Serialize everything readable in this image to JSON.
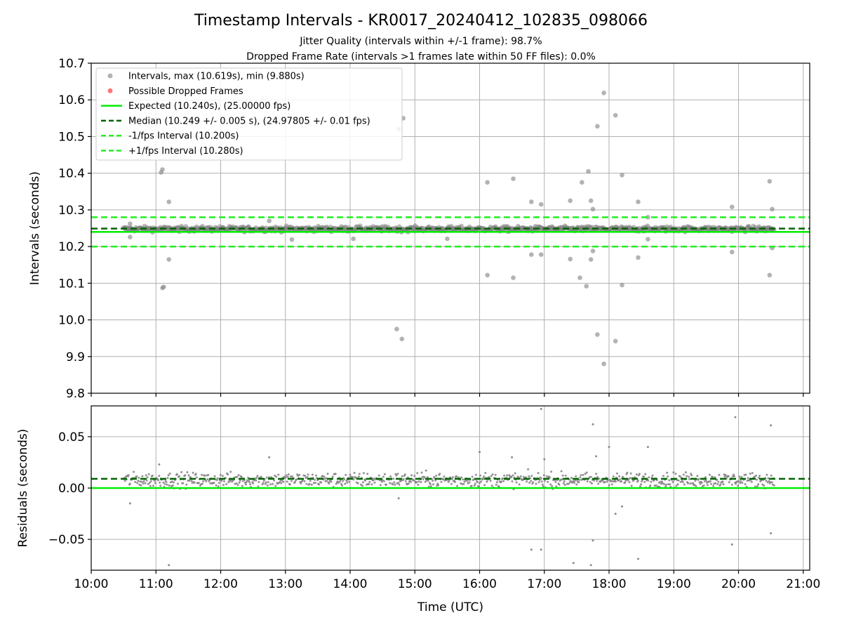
{
  "figure": {
    "title": "Timestamp Intervals - KR0017_20240412_102835_098066",
    "subtitle1": "Jitter Quality (intervals within +/-1 frame): 98.7%",
    "subtitle2": "Dropped Frame Rate (intervals >1 frames late within 50 FF files): 0.0%"
  },
  "colors": {
    "points": "#808080",
    "dropped": "#ff5555",
    "expected": "#00ee00",
    "median": "#006400",
    "fps_band": "#22ee22",
    "grid": "#b0b0b0"
  },
  "chart_data": [
    {
      "type": "scatter",
      "panel": "intervals",
      "ylabel": "Intervals (seconds)",
      "xlabel": "",
      "xlim_hours": [
        10.0,
        21.1
      ],
      "ylim": [
        9.8,
        10.7
      ],
      "x_ticks": [
        "10:00",
        "11:00",
        "12:00",
        "13:00",
        "14:00",
        "15:00",
        "16:00",
        "17:00",
        "18:00",
        "19:00",
        "20:00",
        "21:00"
      ],
      "y_ticks": [
        "9.8",
        "9.9",
        "10.0",
        "10.1",
        "10.2",
        "10.3",
        "10.4",
        "10.5",
        "10.6",
        "10.7"
      ],
      "grid": true,
      "legend_position": "top-left",
      "legend": [
        {
          "label": "Intervals, max (10.619s), min (9.880s)",
          "kind": "dot"
        },
        {
          "label": "Possible Dropped Frames",
          "kind": "dot-red"
        },
        {
          "label": "Expected (10.240s), (25.00000 fps)",
          "kind": "solid"
        },
        {
          "label": "Median (10.249 +/- 0.005 s), (24.97805 +/- 0.01 fps)",
          "kind": "dash-dark"
        },
        {
          "label": "-1/fps Interval (10.200s)",
          "kind": "dash"
        },
        {
          "label": "+1/fps Interval (10.280s)",
          "kind": "dash"
        }
      ],
      "reference_lines": {
        "expected": 10.24,
        "median": 10.249,
        "minus_fps": 10.2,
        "plus_fps": 10.28
      },
      "baseline": {
        "x_range_hours": [
          10.5,
          20.55
        ],
        "y_center": 10.248,
        "y_spread": 0.012
      },
      "outliers": [
        [
          11.1,
          10.41
        ],
        [
          11.08,
          10.402
        ],
        [
          11.2,
          10.322
        ],
        [
          11.2,
          10.165
        ],
        [
          11.12,
          10.09
        ],
        [
          11.1,
          10.087
        ],
        [
          14.75,
          10.52
        ],
        [
          14.82,
          10.55
        ],
        [
          14.72,
          9.975
        ],
        [
          14.8,
          9.948
        ],
        [
          16.12,
          10.375
        ],
        [
          16.12,
          10.122
        ],
        [
          16.52,
          10.385
        ],
        [
          16.52,
          10.115
        ],
        [
          16.8,
          10.322
        ],
        [
          16.95,
          10.315
        ],
        [
          16.8,
          10.178
        ],
        [
          16.95,
          10.178
        ],
        [
          17.4,
          10.325
        ],
        [
          17.58,
          10.375
        ],
        [
          17.68,
          10.405
        ],
        [
          17.72,
          10.325
        ],
        [
          17.75,
          10.302
        ],
        [
          17.4,
          10.166
        ],
        [
          17.55,
          10.115
        ],
        [
          17.65,
          10.092
        ],
        [
          17.72,
          10.165
        ],
        [
          17.75,
          10.188
        ],
        [
          17.82,
          10.528
        ],
        [
          17.82,
          9.96
        ],
        [
          17.92,
          10.619
        ],
        [
          17.92,
          9.88
        ],
        [
          18.1,
          10.558
        ],
        [
          18.1,
          9.942
        ],
        [
          18.2,
          10.395
        ],
        [
          18.2,
          10.095
        ],
        [
          18.45,
          10.322
        ],
        [
          18.45,
          10.17
        ],
        [
          18.6,
          10.28
        ],
        [
          18.6,
          10.22
        ],
        [
          19.9,
          10.308
        ],
        [
          19.9,
          10.185
        ],
        [
          20.48,
          10.378
        ],
        [
          20.48,
          10.122
        ],
        [
          20.52,
          10.302
        ],
        [
          20.52,
          10.196
        ],
        [
          10.6,
          10.262
        ],
        [
          10.6,
          10.226
        ],
        [
          12.75,
          10.27
        ],
        [
          13.1,
          10.219
        ],
        [
          14.05,
          10.221
        ],
        [
          15.5,
          10.221
        ]
      ]
    },
    {
      "type": "scatter",
      "panel": "residuals",
      "ylabel": "Residuals (seconds)",
      "xlabel": "Time (UTC)",
      "xlim_hours": [
        10.0,
        21.1
      ],
      "ylim": [
        -0.08,
        0.08
      ],
      "x_ticks": [
        "10:00",
        "11:00",
        "12:00",
        "13:00",
        "14:00",
        "15:00",
        "16:00",
        "17:00",
        "18:00",
        "19:00",
        "20:00",
        "21:00"
      ],
      "y_ticks": [
        "−0.05",
        "0.00",
        "0.05"
      ],
      "y_tick_values": [
        -0.05,
        0.0,
        0.05
      ],
      "grid": true,
      "reference_lines": {
        "expected": 0.0,
        "median": 0.009
      },
      "baseline": {
        "x_range_hours": [
          10.5,
          20.55
        ],
        "y_center": 0.008,
        "y_spread": 0.012
      },
      "outliers": [
        [
          11.2,
          -0.075
        ],
        [
          16.95,
          0.077
        ],
        [
          17.75,
          0.062
        ],
        [
          19.95,
          0.069
        ],
        [
          20.5,
          0.061
        ],
        [
          16.8,
          -0.06
        ],
        [
          16.95,
          -0.06
        ],
        [
          17.45,
          -0.073
        ],
        [
          17.72,
          -0.075
        ],
        [
          17.75,
          -0.051
        ],
        [
          18.45,
          -0.069
        ],
        [
          19.9,
          -0.055
        ],
        [
          20.5,
          -0.044
        ],
        [
          18.1,
          -0.025
        ],
        [
          18.2,
          -0.018
        ],
        [
          11.05,
          0.023
        ],
        [
          12.75,
          0.03
        ],
        [
          16.0,
          0.035
        ],
        [
          16.5,
          0.03
        ],
        [
          17.0,
          0.028
        ],
        [
          18.0,
          0.04
        ],
        [
          18.6,
          0.04
        ],
        [
          17.8,
          0.031
        ],
        [
          10.6,
          -0.015
        ],
        [
          14.75,
          -0.01
        ]
      ]
    }
  ]
}
